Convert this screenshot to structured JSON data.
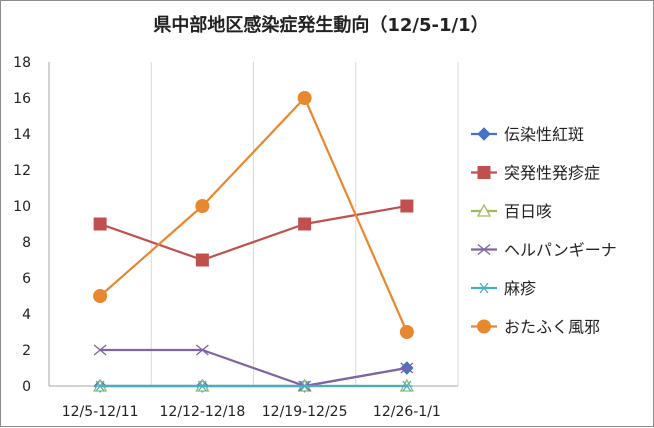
{
  "chart_data": {
    "type": "line",
    "title": "県中部地区感染症発生動向（12/5-1/1）",
    "categories": [
      "12/5-12/11",
      "12/12-12/18",
      "12/19-12/25",
      "12/26-1/1"
    ],
    "ylim": [
      0,
      18
    ],
    "yticks": [
      0,
      2,
      4,
      6,
      8,
      10,
      12,
      14,
      16,
      18
    ],
    "grid": "vertical",
    "legend_position": "right",
    "series": [
      {
        "name": "伝染性紅斑",
        "values": [
          0,
          0,
          0,
          1
        ],
        "color": "#4472c4",
        "marker": "diamond"
      },
      {
        "name": "突発性発疹症",
        "values": [
          9,
          7,
          9,
          10
        ],
        "color": "#c0504d",
        "marker": "square"
      },
      {
        "name": "百日咳",
        "values": [
          0,
          0,
          0,
          0
        ],
        "color": "#9bbb59",
        "marker": "triangle"
      },
      {
        "name": "ヘルパンギーナ",
        "values": [
          2,
          2,
          0,
          1
        ],
        "color": "#8064a2",
        "marker": "x"
      },
      {
        "name": "麻疹",
        "values": [
          0,
          0,
          0,
          0
        ],
        "color": "#4bacc6",
        "marker": "star"
      },
      {
        "name": "おたふく風邪",
        "values": [
          5,
          10,
          16,
          3
        ],
        "color": "#e8872f",
        "marker": "circle"
      }
    ]
  }
}
